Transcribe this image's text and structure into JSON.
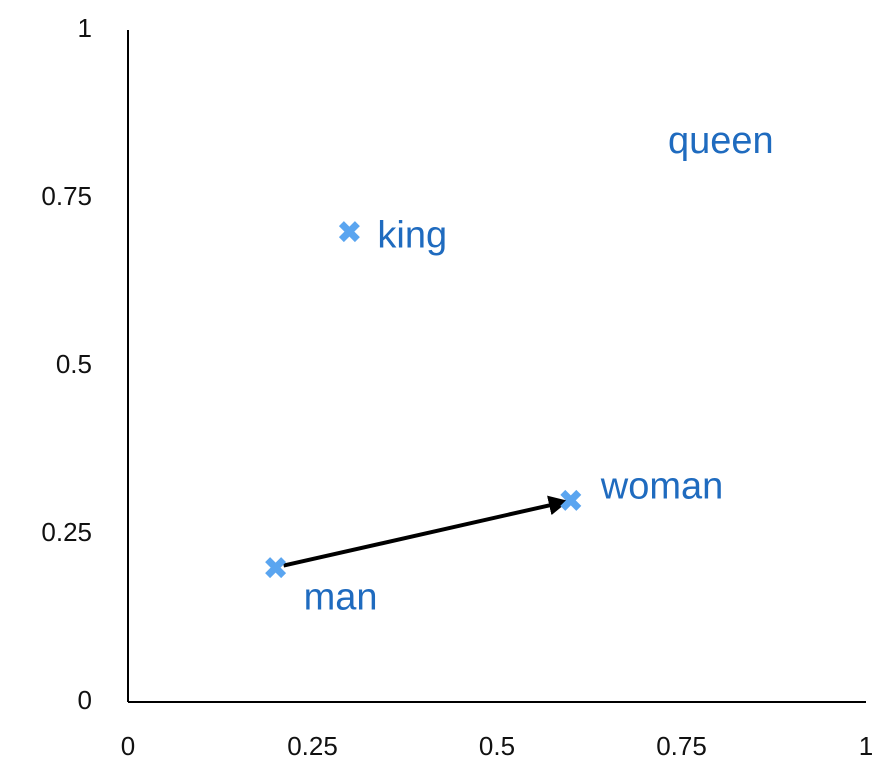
{
  "chart_data": {
    "type": "scatter",
    "x": [
      0.2,
      0.6,
      0.3
    ],
    "y": [
      0.2,
      0.3,
      0.7
    ],
    "labels": [
      "man",
      "woman",
      "king"
    ],
    "annotations": [
      "queen"
    ],
    "color": "#5aa5f0",
    "xlim": [
      0,
      1
    ],
    "ylim": [
      0,
      1
    ],
    "xticks": [
      0,
      0.25,
      0.5,
      0.75,
      1
    ],
    "yticks": [
      0,
      0.25,
      0.5,
      0.75,
      1
    ]
  }
}
